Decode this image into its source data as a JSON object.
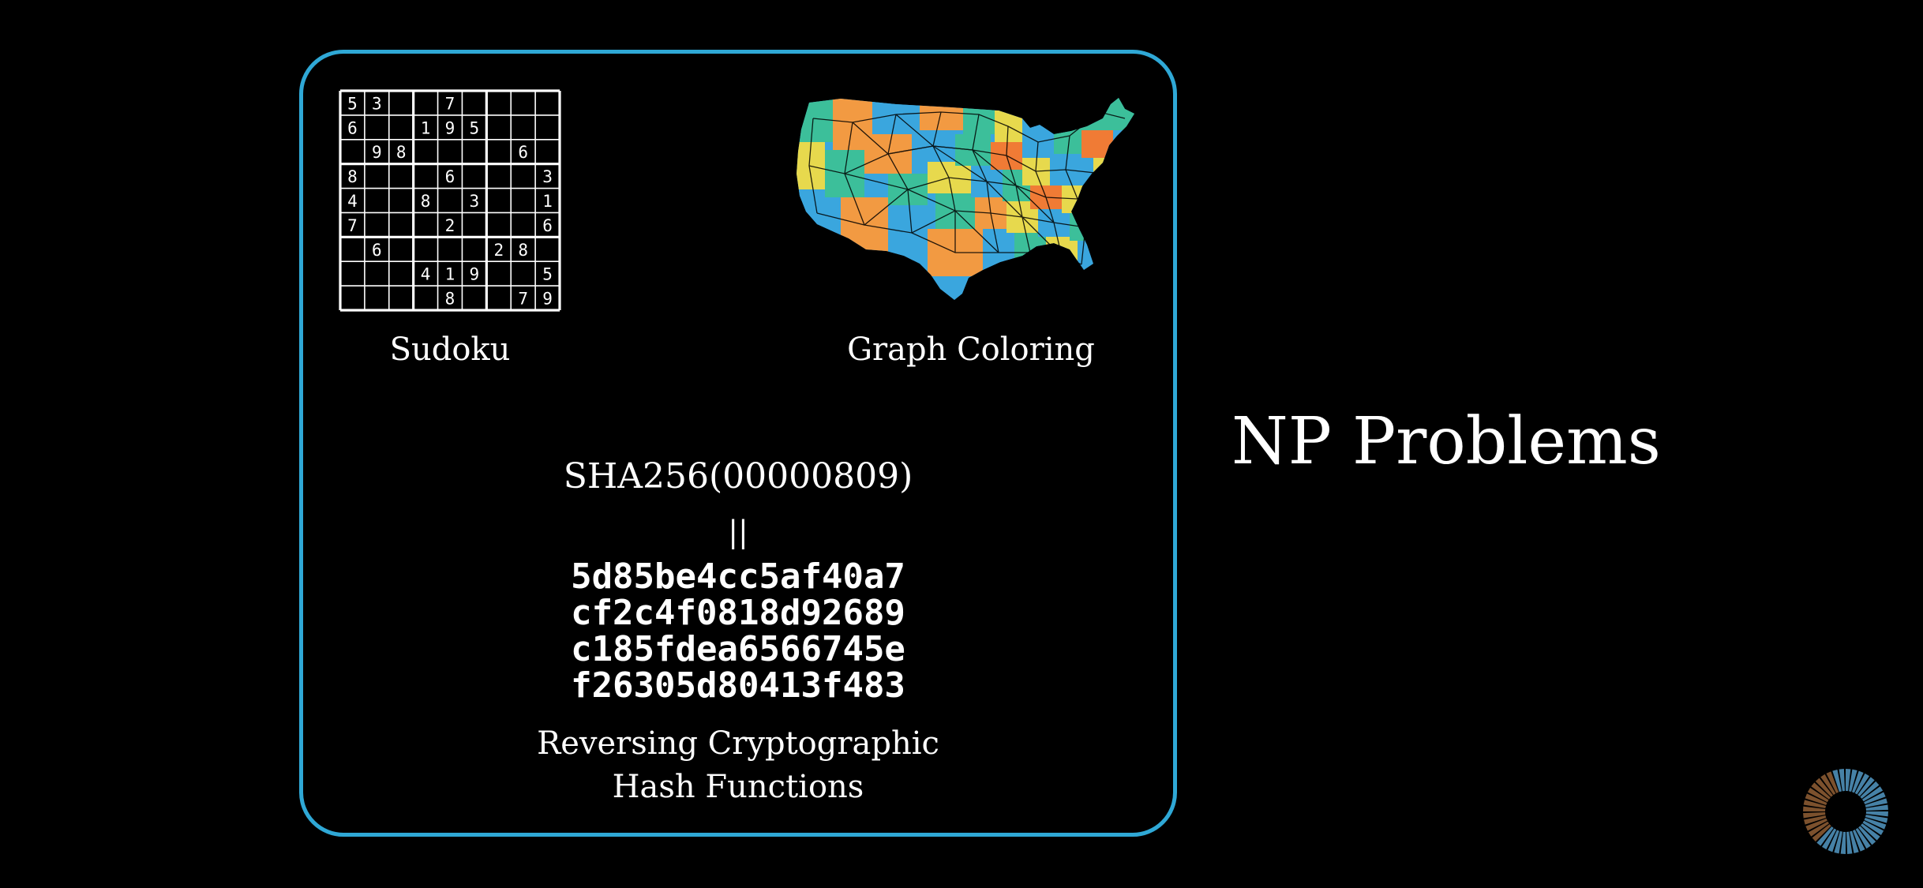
{
  "sudoku": {
    "caption": "Sudoku",
    "grid": [
      [
        "5",
        "3",
        "",
        "",
        "7",
        "",
        "",
        "",
        ""
      ],
      [
        "6",
        "",
        "",
        "1",
        "9",
        "5",
        "",
        "",
        ""
      ],
      [
        "",
        "9",
        "8",
        "",
        "",
        "",
        "",
        "6",
        ""
      ],
      [
        "8",
        "",
        "",
        "",
        "6",
        "",
        "",
        "",
        "3"
      ],
      [
        "4",
        "",
        "",
        "8",
        "",
        "3",
        "",
        "",
        "1"
      ],
      [
        "7",
        "",
        "",
        "",
        "2",
        "",
        "",
        "",
        "6"
      ],
      [
        "",
        "6",
        "",
        "",
        "",
        "",
        "2",
        "8",
        ""
      ],
      [
        "",
        "",
        "",
        "4",
        "1",
        "9",
        "",
        "",
        "5"
      ],
      [
        "",
        "",
        "",
        "",
        "8",
        "",
        "",
        "7",
        "9"
      ]
    ]
  },
  "graph_coloring": {
    "caption": "Graph Coloring",
    "map_icon": "us-map-graph-icon",
    "colors": [
      "#f29a42",
      "#3aa6de",
      "#3cbf9a",
      "#e7d94d",
      "#f07b35"
    ]
  },
  "hash": {
    "function_text": "SHA256(00000809)",
    "equals_text": "||",
    "digest_lines": [
      "5d85be4cc5af40a7",
      "cf2c4f0818d92689",
      "c185fdea6566745e",
      "f26305d80413f483"
    ],
    "caption_line1": "Reversing Cryptographic",
    "caption_line2": "Hash Functions"
  },
  "title": "NP Problems",
  "accent_color": "#2fa8d6",
  "spinner_icon": "loading-spinner-icon"
}
